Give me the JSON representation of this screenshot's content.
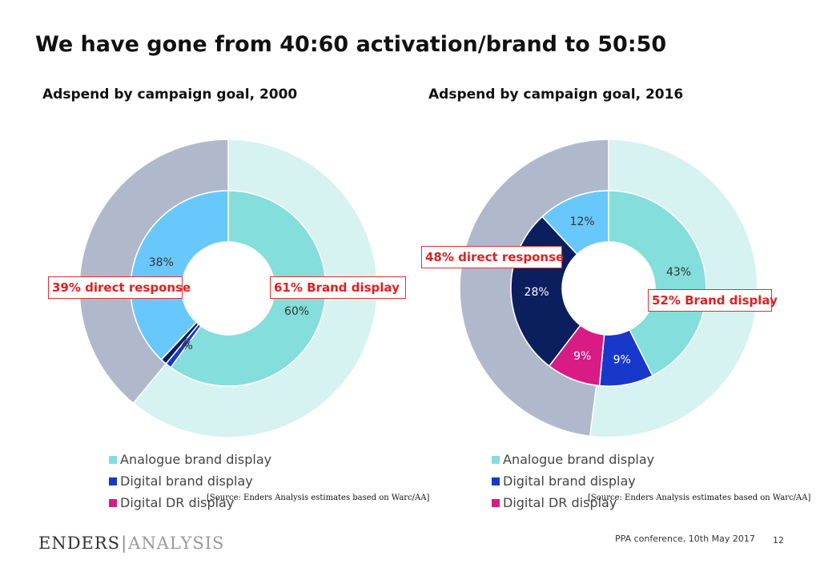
{
  "title": "We have gone from 40:60 activation/brand to 50:50",
  "colors": {
    "analogue_brand": "#84DEDB",
    "digital_brand": "#1838CC",
    "digital_dr": "#D81B85",
    "digital_dr_dark": "#0B1E5E",
    "analogue_dr": "#69C8FB",
    "outer_brand": "#D6F2F1",
    "outer_dr": "#B0B8CC",
    "callout": "#E02020"
  },
  "chart_data": [
    {
      "type": "pie",
      "title": "Adspend by campaign goal, 2000",
      "inner_ring": [
        {
          "label": "60%",
          "value": 60,
          "color": "#84DEDB"
        },
        {
          "label": "1%",
          "value": 1,
          "color": "#1838CC"
        },
        {
          "label": "1%",
          "value": 1,
          "color": "#0B1E5E"
        },
        {
          "label": "38%",
          "value": 38,
          "color": "#69C8FB"
        }
      ],
      "outer_ring": [
        {
          "label": "61% Brand display",
          "value": 61,
          "color": "#D6F2F1"
        },
        {
          "label": "39% direct response",
          "value": 39,
          "color": "#B0B8CC"
        }
      ],
      "legend": [
        "Analogue brand display",
        "Digital brand display",
        "Digital DR display"
      ],
      "source": "[Source: Enders Analysis estimates based on Warc/AA]"
    },
    {
      "type": "pie",
      "title": "Adspend by campaign goal, 2016",
      "inner_ring": [
        {
          "label": "43%",
          "value": 43,
          "color": "#84DEDB"
        },
        {
          "label": "9%",
          "value": 9,
          "color": "#1838CC"
        },
        {
          "label": "9%",
          "value": 9,
          "color": "#D81B85"
        },
        {
          "label": "28%",
          "value": 28,
          "color": "#0B1E5E"
        },
        {
          "label": "12%",
          "value": 12,
          "color": "#69C8FB"
        }
      ],
      "outer_ring": [
        {
          "label": "52% Brand display",
          "value": 52,
          "color": "#D6F2F1"
        },
        {
          "label": "48% direct response",
          "value": 48,
          "color": "#B0B8CC"
        }
      ],
      "legend": [
        "Analogue brand display",
        "Digital brand display",
        "Digital DR display"
      ],
      "source": "[Source: Enders Analysis estimates based on Warc/AA]"
    }
  ],
  "logo": {
    "left": "ENDERS",
    "right": "ANALYSIS"
  },
  "footer": {
    "event": "PPA conference, 10th May 2017",
    "page": "12"
  }
}
